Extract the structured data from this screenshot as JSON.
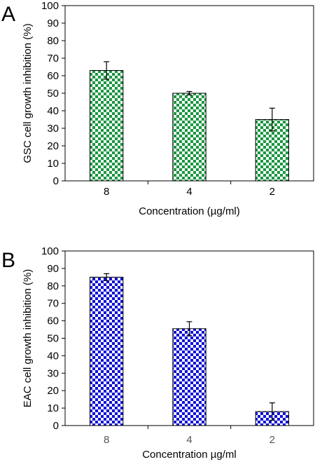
{
  "chart_data": [
    {
      "panel_label": "A",
      "type": "bar",
      "categories": [
        "8",
        "4",
        "2"
      ],
      "values": [
        63,
        50,
        35
      ],
      "errors": [
        5,
        1,
        6.5
      ],
      "xlabel": "Concentration (µg/ml)",
      "ylabel": "GSC cell growth inhibition (%)",
      "ylim": [
        0,
        100
      ],
      "yticks": [
        "0",
        "10",
        "20",
        "30",
        "40",
        "50",
        "60",
        "70",
        "80",
        "90",
        "100"
      ],
      "bar_pattern_color": "#1a9641",
      "grid": false
    },
    {
      "panel_label": "B",
      "type": "bar",
      "categories": [
        "8",
        "4",
        "2"
      ],
      "values": [
        85,
        55.5,
        8
      ],
      "errors": [
        2,
        4,
        5
      ],
      "xlabel": "Concentration µg/ml",
      "ylabel": "EAC cell growth inhibition (%)",
      "ylim": [
        0,
        100
      ],
      "yticks": [
        "0",
        "10",
        "20",
        "30",
        "40",
        "50",
        "60",
        "70",
        "80",
        "90",
        "100"
      ],
      "bar_pattern_color": "#1010d8",
      "grid": false
    }
  ]
}
